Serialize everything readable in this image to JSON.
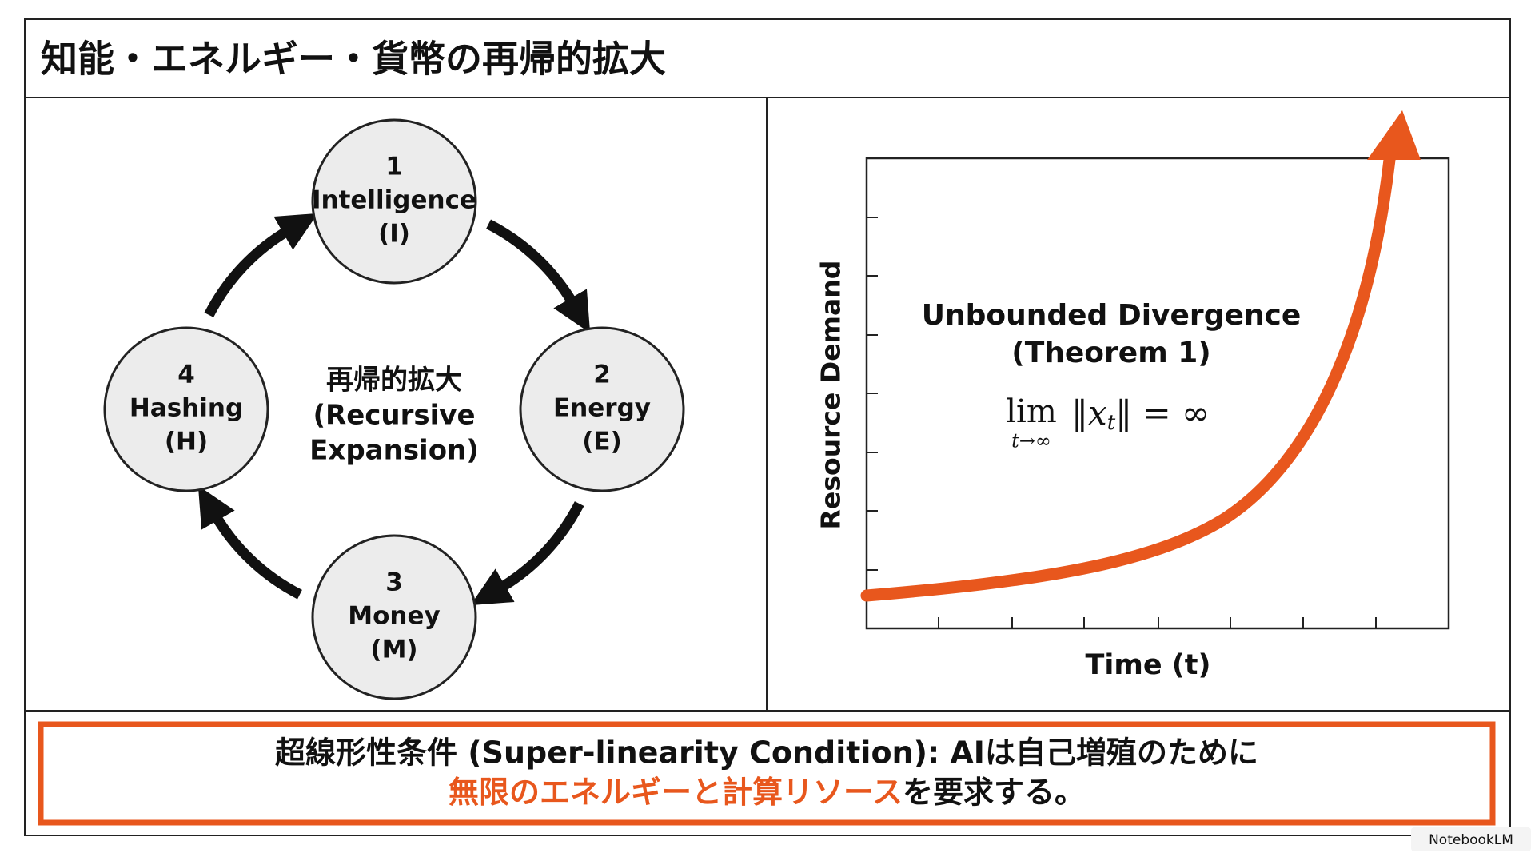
{
  "header": {
    "title": "知能・エネルギー・貨幣の再帰的拡大"
  },
  "cycle": {
    "nodes": [
      {
        "number": "1",
        "name": "Intelligence",
        "symbol": "(I)"
      },
      {
        "number": "2",
        "name": "Energy",
        "symbol": "(E)"
      },
      {
        "number": "3",
        "name": "Money",
        "symbol": "(M)"
      },
      {
        "number": "4",
        "name": "Hashing",
        "symbol": "(H)"
      }
    ],
    "center": [
      "再帰的拡大",
      "(Recursive",
      "Expansion)"
    ]
  },
  "graph": {
    "y_label": "Resource Demand",
    "x_label": "Time (t)",
    "annotation": [
      "Unbounded Divergence",
      "(Theorem 1)"
    ],
    "formula": {
      "lim": "lim",
      "under": "t→∞",
      "left": "‖x",
      "index": "t",
      "right": "‖ = ∞"
    }
  },
  "footer": {
    "line1": "超線形性条件 (Super-linearity Condition): AIは自己増殖のために",
    "line2_highlight": "無限のエネルギーと計算リソース",
    "line2_rest": "を要求する。"
  },
  "watermark": "NotebookLM"
}
